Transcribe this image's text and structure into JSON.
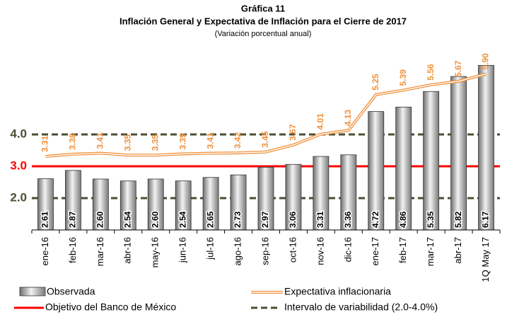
{
  "chart_data": {
    "type": "bar",
    "title": "Gráfica 11",
    "subtitle": "Inflación General y Expectativa de Inflación para el Cierre de 2017",
    "note": "(Variación porcentual anual)",
    "categories": [
      "ene-16",
      "feb-16",
      "mar-16",
      "abr-16",
      "may-16",
      "jun-16",
      "jul-16",
      "ago-16",
      "sep-16",
      "oct-16",
      "nov-16",
      "dic-16",
      "ene-17",
      "feb-17",
      "mar-17",
      "abr-17",
      "1Q May 17"
    ],
    "series": [
      {
        "name": "Observada",
        "type": "bar",
        "color": "#a6a6a6",
        "values": [
          2.61,
          2.87,
          2.6,
          2.54,
          2.6,
          2.54,
          2.65,
          2.73,
          2.97,
          3.06,
          3.31,
          3.36,
          4.72,
          4.86,
          5.35,
          5.82,
          6.17
        ],
        "value_labels": [
          "2.61",
          "2.87",
          "2.60",
          "2.54",
          "2.60",
          "2.54",
          "2.65",
          "2.73",
          "2.97",
          "3.06",
          "3.31",
          "3.36",
          "4.72",
          "4.86",
          "5.35",
          "5.82",
          "6.17"
        ]
      },
      {
        "name": "Expectativa inflacionaria",
        "type": "line",
        "color": "#f0913c",
        "values": [
          3.31,
          3.38,
          3.41,
          3.35,
          3.35,
          3.39,
          3.41,
          3.42,
          3.45,
          3.67,
          4.01,
          4.13,
          5.25,
          5.39,
          5.56,
          5.67,
          5.9
        ],
        "value_labels": [
          "3.31",
          "3.38",
          "3.41",
          "3.35",
          "3.35",
          "3.39",
          "3.41",
          "3.42",
          "3.45",
          "3.67",
          "4.01",
          "4.13",
          "5.25",
          "5.39",
          "5.56",
          "5.67",
          "5.90"
        ]
      }
    ],
    "reference_lines": [
      {
        "name": "Objetivo del Banco de México",
        "values": [
          3
        ],
        "color": "#ff0000",
        "dashed": false
      },
      {
        "name": "Intervalo de variabilidad (2.0-4.0%)",
        "values": [
          2,
          4
        ],
        "color": "#4d4d33",
        "dashed": true
      }
    ],
    "ylim": [
      1,
      7
    ],
    "yticks": [
      {
        "value": 2,
        "label": "2.0"
      },
      {
        "value": 3,
        "label": "3.0"
      },
      {
        "value": 4,
        "label": "4.0"
      }
    ]
  }
}
